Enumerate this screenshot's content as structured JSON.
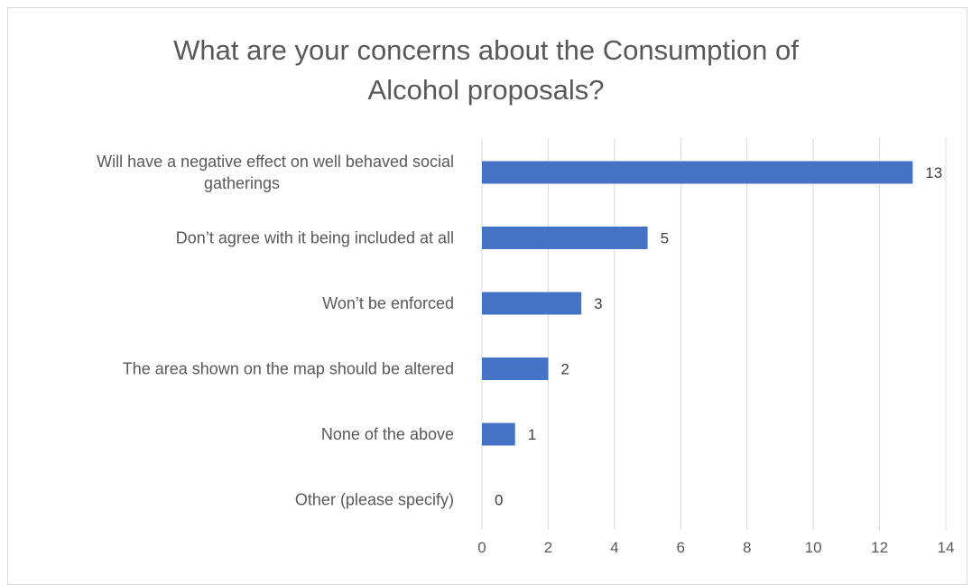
{
  "chart_data": {
    "type": "bar",
    "orientation": "horizontal",
    "title_lines": [
      "What are your concerns about the Consumption of",
      "Alcohol proposals?"
    ],
    "categories": [
      [
        "Will have a negative effect on well behaved social",
        "gatherings"
      ],
      [
        "Don’t agree with it being included at all"
      ],
      [
        "Won’t be enforced"
      ],
      [
        "The area shown on the map should be altered"
      ],
      [
        "None of the above"
      ],
      [
        "Other (please specify)"
      ]
    ],
    "values": [
      13,
      5,
      3,
      2,
      1,
      0
    ],
    "xlim": [
      0,
      14
    ],
    "xticks": [
      0,
      2,
      4,
      6,
      8,
      10,
      12,
      14
    ],
    "grid": true,
    "legend": "none",
    "colors": {
      "bar": "#4472c4",
      "grid": "#d9d9d9",
      "text": "#595959"
    }
  }
}
